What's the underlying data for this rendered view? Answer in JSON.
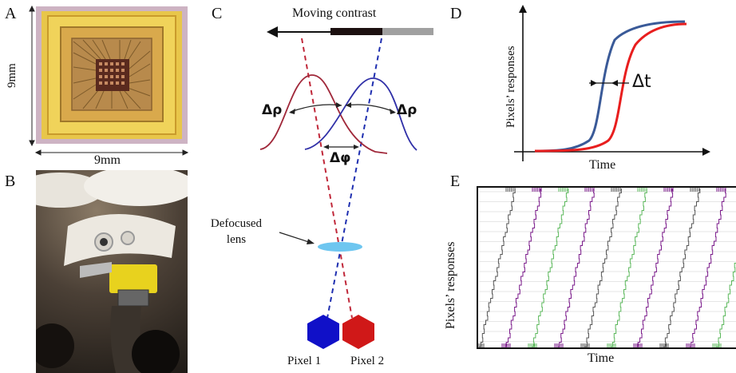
{
  "panels": {
    "a": {
      "letter": "A",
      "width_label": "9mm",
      "height_label": "9mm"
    },
    "b": {
      "letter": "B"
    },
    "c": {
      "letter": "C",
      "moving_contrast": "Moving contrast",
      "delta_rho_left": "Δρ",
      "delta_rho_right": "Δρ",
      "delta_phi": "Δφ",
      "lens_label_line1": "Defocused",
      "lens_label_line2": "lens",
      "pixel1": "Pixel 1",
      "pixel2": "Pixel 2",
      "colors": {
        "pixel1": "#1010c8",
        "pixel2": "#d01818",
        "lens": "#6ec6f0"
      }
    },
    "d": {
      "letter": "D",
      "ylabel": "Pixels’ responses",
      "xlabel": "Time",
      "delta_t": "Δt",
      "colors": {
        "series_a": "#3a5a98",
        "series_b": "#e81e1e"
      }
    },
    "e": {
      "letter": "E",
      "ylabel": "Pixels’ responses",
      "xlabel": "Time",
      "colors": {
        "purple": "#7a1a8a",
        "green": "#5cb85c",
        "grey": "#555555"
      }
    }
  }
}
